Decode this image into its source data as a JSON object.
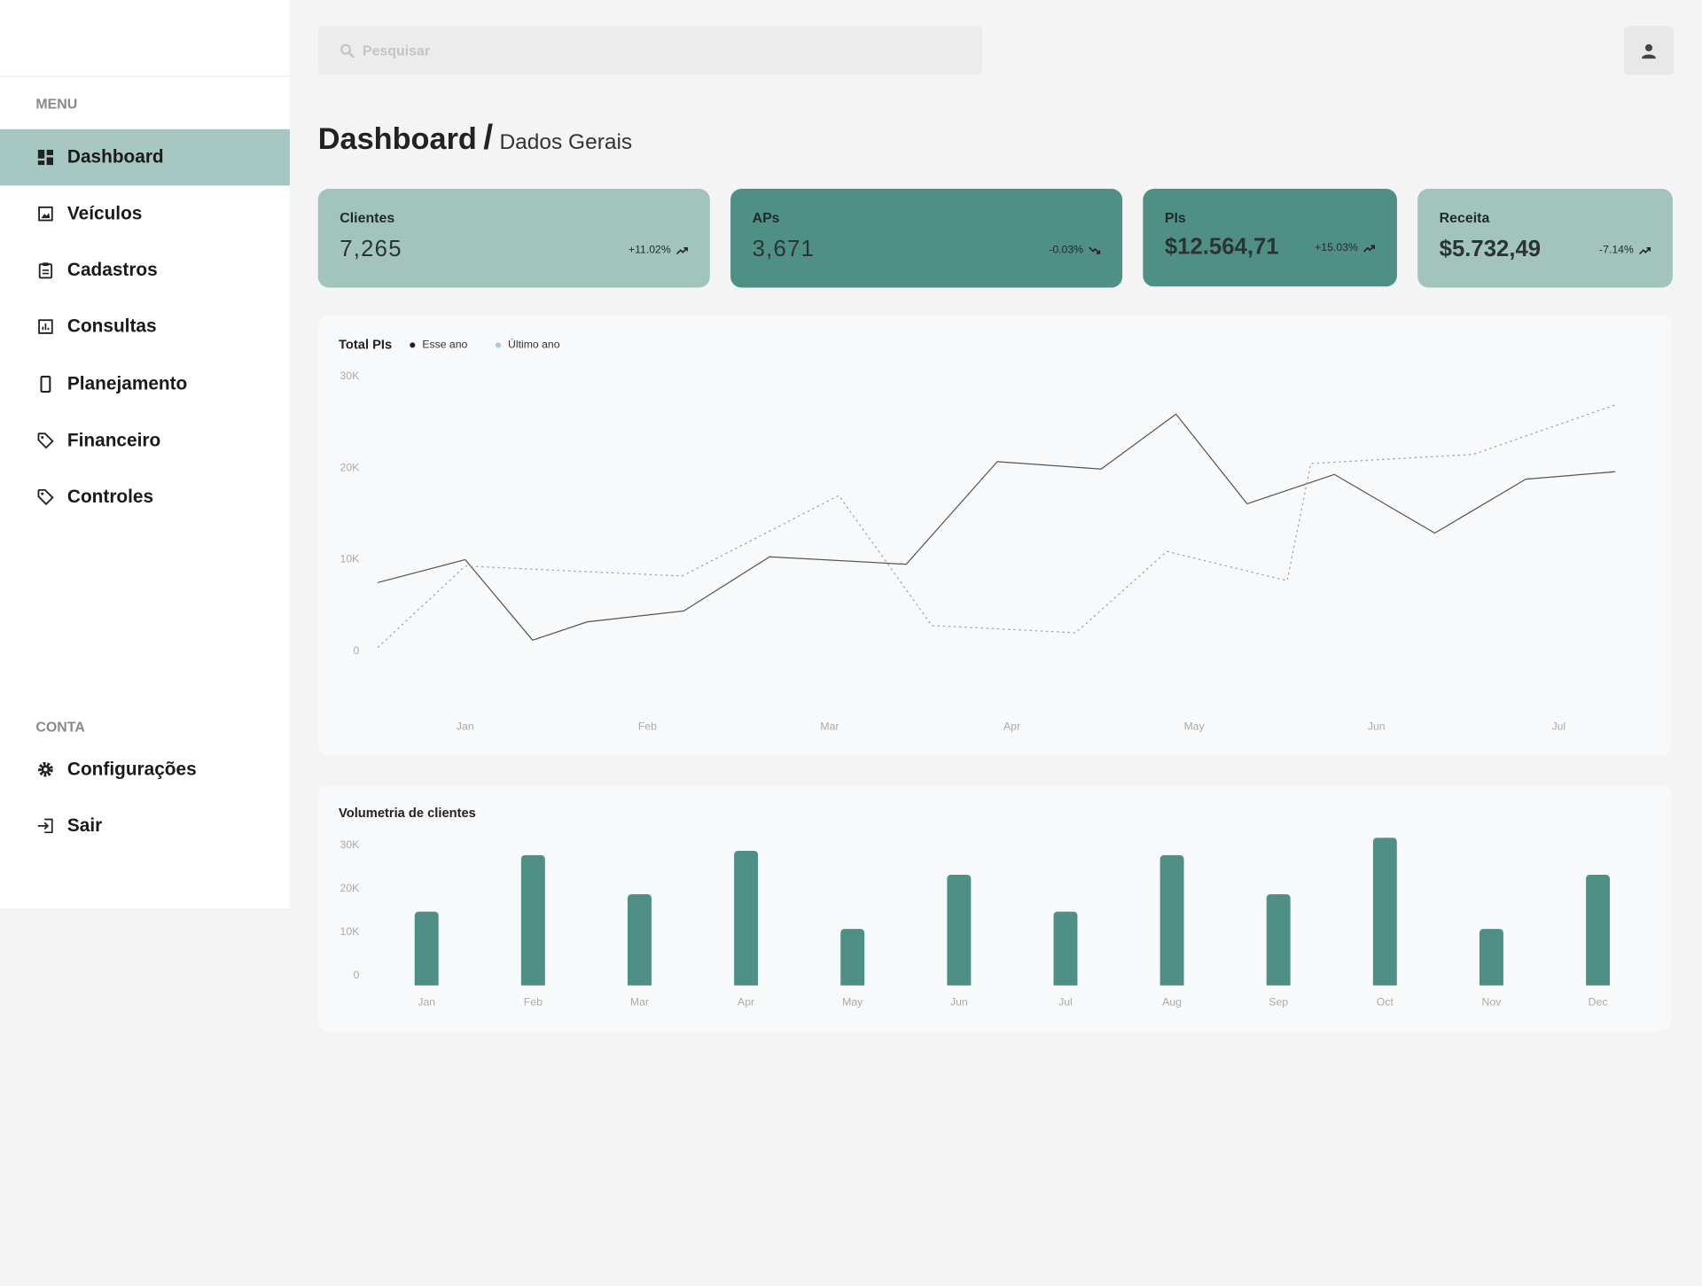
{
  "sidebar": {
    "menu_label": "MENU",
    "menu": [
      "Dashboard",
      "Veículos",
      "Cadastros",
      "Consultas",
      "Planejamento",
      "Financeiro",
      "Controles"
    ],
    "account_label": "CONTA",
    "account": [
      "Configurações",
      "Sair"
    ]
  },
  "search_placeholder": "Pesquisar",
  "header": {
    "title": "Dashboard",
    "separator": "/",
    "subtitle": "Dados Gerais"
  },
  "cards": [
    {
      "label": "Clientes",
      "value": "7,265",
      "change": "+11.02%"
    },
    {
      "label": "APs",
      "value": "3,671",
      "change": "-0.03%"
    },
    {
      "label": "PIs",
      "value": "$12.564,71",
      "change": "+15.03%"
    },
    {
      "label": "Receita",
      "value": "$5.732,49",
      "change": "-7.14%"
    }
  ],
  "chart_data": [
    {
      "type": "line",
      "title": "Total PIs",
      "xlim": [
        -0.48,
        6.31
      ],
      "xticks": [
        {
          "value": 0,
          "label": "Jan"
        },
        {
          "value": 1,
          "label": "Feb"
        },
        {
          "value": 2,
          "label": "Mar"
        },
        {
          "value": 3,
          "label": "Apr"
        },
        {
          "value": 4,
          "label": "May"
        },
        {
          "value": 5,
          "label": "Jun"
        },
        {
          "value": 6,
          "label": "Jul"
        }
      ],
      "ylim": [
        0,
        30000
      ],
      "yticks": [
        0,
        {
          "value": 10000,
          "label": "10K"
        },
        {
          "value": 20000,
          "label": "20K"
        },
        {
          "value": 30000,
          "label": "30K"
        }
      ],
      "grid": false,
      "series": [
        {
          "name": "Esse ano",
          "color": "#555555",
          "legend_color": "#222222",
          "line_style": "solid",
          "x": [
            -0.48,
            0,
            0.37,
            0.67,
            1.2,
            1.67,
            2.42,
            2.92,
            3.49,
            3.9,
            4.29,
            4.77,
            5.32,
            5.82,
            6.31
          ],
          "values": [
            7500,
            10000,
            1200,
            3200,
            4400,
            10300,
            9500,
            20700,
            19900,
            25900,
            16100,
            19300,
            12900,
            18800,
            19600
          ]
        },
        {
          "name": "Último ano",
          "color": "#a0a0a0",
          "legend_color": "#a8c8e0",
          "line_style": "dotted",
          "x": [
            -0.48,
            0,
            1.19,
            2.05,
            2.56,
            3.35,
            3.85,
            4.51,
            4.64,
            5.53,
            6.31
          ],
          "values": [
            400,
            9300,
            8200,
            17000,
            2800,
            2000,
            10900,
            7700,
            20500,
            21500,
            26900
          ]
        }
      ]
    },
    {
      "type": "bar",
      "title": "Volumetria de clientes",
      "categories": [
        "Jan",
        "Feb",
        "Mar",
        "Apr",
        "May",
        "Jun",
        "Jul",
        "Aug",
        "Sep",
        "Oct",
        "Nov",
        "Dec"
      ],
      "values": [
        17000,
        30000,
        21000,
        31000,
        13000,
        25500,
        17000,
        30000,
        21000,
        34000,
        13000,
        25500
      ],
      "color": "#4f8f85",
      "ylim": [
        0,
        35000
      ],
      "yticks": [
        0,
        {
          "value": 10000,
          "label": "10K"
        },
        {
          "value": 20000,
          "label": "20K"
        },
        {
          "value": 30000,
          "label": "30K"
        }
      ],
      "grid": false
    }
  ]
}
